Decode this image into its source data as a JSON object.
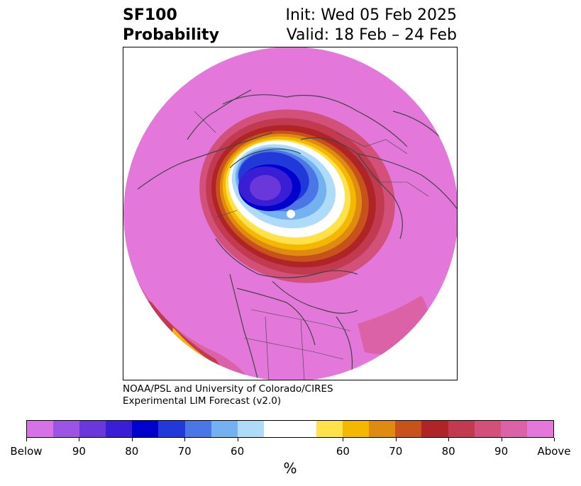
{
  "header": {
    "title_line1": "SF100",
    "title_line2": "Probability",
    "init_text": "Init: Wed 05 Feb 2025",
    "valid_text": "Valid: 18 Feb – 24 Feb"
  },
  "credit": {
    "line1": "NOAA/PSL and University of Colorado/CIRES",
    "line2": "Experimental LIM Forecast (v2.0)"
  },
  "colorbar": {
    "unit": "%",
    "colors": [
      "#d671e6",
      "#9b55e2",
      "#6a38da",
      "#3a1ed6",
      "#0000cc",
      "#2239da",
      "#4a76e6",
      "#73b1f1",
      "#aedcf8",
      "#ffffff",
      "#ffe14a",
      "#f5b800",
      "#df8a10",
      "#c8521c",
      "#b02326",
      "#c23a50",
      "#d2507a",
      "#dc62a8",
      "#e377da"
    ],
    "ticks": [
      {
        "label": "Below",
        "slot": 0
      },
      {
        "label": "90",
        "slot": 2
      },
      {
        "label": "80",
        "slot": 4
      },
      {
        "label": "70",
        "slot": 6
      },
      {
        "label": "60",
        "slot": 8
      },
      {
        "label": "60",
        "slot": 12
      },
      {
        "label": "70",
        "slot": 14
      },
      {
        "label": "80",
        "slot": 16
      },
      {
        "label": "90",
        "slot": 18
      },
      {
        "label": "Above",
        "slot": 20
      }
    ]
  },
  "map": {
    "background_color": "#e47ad8",
    "pole_color": "#ffffff",
    "coastline_color": "#444444"
  }
}
